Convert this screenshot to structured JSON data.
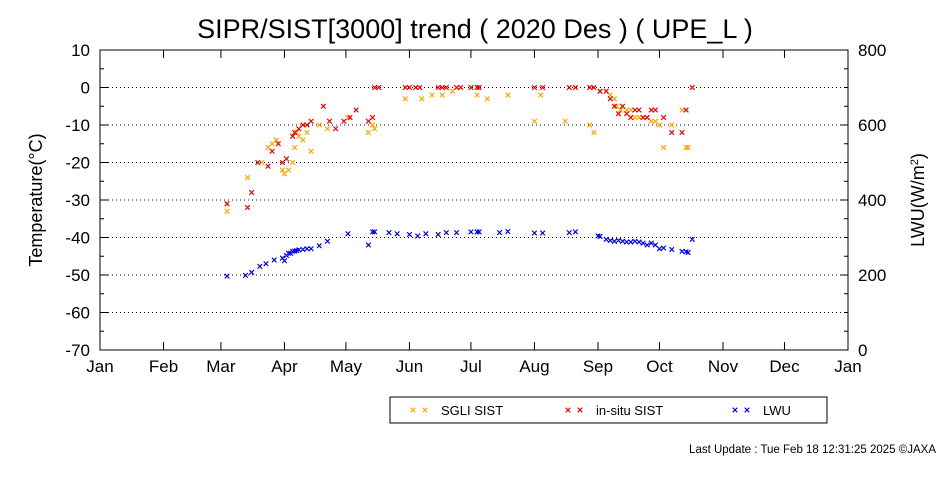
{
  "chart_data": {
    "type": "scatter",
    "title": "SIPR/SIST[3000] trend ( 2020 Des ) ( UPE_L )",
    "xlabel": "",
    "ylabel": "Temperature(°C)",
    "y2label_prefix": "LWU(W/m",
    "y2label_sup": "2",
    "y2label_suffix": ")",
    "x_unit": "day of year",
    "xlim": [
      1,
      366
    ],
    "ylim": [
      -70,
      10
    ],
    "y2lim": [
      0,
      800
    ],
    "x_ticks": [
      {
        "label": "Jan",
        "day": 1
      },
      {
        "label": "Feb",
        "day": 32
      },
      {
        "label": "Mar",
        "day": 60
      },
      {
        "label": "Apr",
        "day": 91
      },
      {
        "label": "May",
        "day": 121
      },
      {
        "label": "Jun",
        "day": 152
      },
      {
        "label": "Jul",
        "day": 182
      },
      {
        "label": "Aug",
        "day": 213
      },
      {
        "label": "Sep",
        "day": 244
      },
      {
        "label": "Oct",
        "day": 274
      },
      {
        "label": "Nov",
        "day": 305
      },
      {
        "label": "Dec",
        "day": 335
      },
      {
        "label": "Jan",
        "day": 366
      }
    ],
    "y_ticks": [
      10,
      0,
      -10,
      -20,
      -30,
      -40,
      -50,
      -60,
      -70
    ],
    "y2_ticks": [
      800,
      600,
      400,
      200,
      0
    ],
    "grid": "dotted horizontal at each y tick",
    "legend_position": "bottom-right",
    "series": [
      {
        "name": "SGLI SIST",
        "color": "#ffa500",
        "axis": "left",
        "x": [
          63,
          63,
          73,
          80,
          83,
          85,
          87,
          90,
          91,
          93,
          95,
          96,
          97,
          98,
          100,
          102,
          104,
          108,
          112,
          122,
          132,
          134,
          135,
          150,
          158,
          163,
          168,
          173,
          185,
          190,
          200,
          213,
          216,
          228,
          240,
          242,
          245,
          248,
          250,
          252,
          253,
          255,
          258,
          260,
          262,
          264,
          266,
          268,
          270,
          272,
          274,
          276,
          280,
          285,
          287,
          288
        ],
        "y": [
          -33,
          -31,
          -24,
          -20,
          -16,
          -15,
          -14,
          -22,
          -23,
          -22,
          -20,
          -16,
          -12,
          -13,
          -14,
          -12,
          -17,
          -10,
          -11,
          -8,
          -12,
          -10,
          -11,
          -3,
          -3,
          -2,
          -2,
          -1,
          -2,
          -3,
          -2,
          -9,
          -2,
          -9,
          -10,
          -12,
          -1,
          -1,
          -2,
          -3,
          -5,
          -6,
          -6,
          -6,
          -8,
          -8,
          -8,
          -8,
          -9,
          -9,
          -10,
          -16,
          -10,
          -6,
          -16,
          -16
        ]
      },
      {
        "name": "in-situ SIST",
        "color": "#e00000",
        "axis": "left",
        "x": [
          63,
          73,
          75,
          78,
          83,
          85,
          88,
          90,
          92,
          95,
          96,
          98,
          100,
          102,
          104,
          110,
          113,
          116,
          120,
          123,
          126,
          132,
          134,
          135,
          137,
          150,
          152,
          155,
          157,
          166,
          168,
          170,
          175,
          177,
          182,
          185,
          186,
          213,
          217,
          230,
          233,
          240,
          242,
          245,
          248,
          250,
          252,
          254,
          256,
          258,
          260,
          262,
          264,
          266,
          268,
          270,
          272,
          276,
          280,
          285,
          287,
          290
        ],
        "y": [
          -31,
          -32,
          -28,
          -20,
          -21,
          -17,
          -15,
          -20,
          -19,
          -13,
          -12,
          -11,
          -10,
          -10,
          -9,
          -5,
          -9,
          -11,
          -9,
          -8,
          -6,
          -9,
          -8,
          0,
          0,
          0,
          0,
          0,
          0,
          0,
          0,
          0,
          0,
          0,
          0,
          0,
          0,
          0,
          0,
          0,
          0,
          0,
          0,
          -1,
          -1,
          -3,
          -5,
          -7,
          -5,
          -7,
          -8,
          -6,
          -6,
          -8,
          -8,
          -6,
          -6,
          -8,
          -12,
          -12,
          -6,
          0
        ]
      },
      {
        "name": "LWU",
        "color": "#0000dd",
        "axis": "right",
        "x": [
          63,
          72,
          75,
          79,
          82,
          86,
          90,
          91,
          92,
          93,
          94,
          95,
          96,
          97,
          98,
          100,
          102,
          104,
          108,
          112,
          122,
          132,
          134,
          135,
          142,
          146,
          152,
          156,
          160,
          166,
          170,
          175,
          182,
          185,
          186,
          196,
          200,
          213,
          217,
          230,
          233,
          244,
          245,
          248,
          250,
          252,
          254,
          256,
          258,
          260,
          262,
          264,
          266,
          268,
          270,
          272,
          274,
          276,
          280,
          285,
          287,
          288,
          290
        ],
        "y": [
          197,
          199,
          207,
          223,
          230,
          240,
          245,
          238,
          252,
          258,
          258,
          263,
          264,
          265,
          267,
          268,
          270,
          270,
          278,
          290,
          310,
          280,
          315,
          315,
          313,
          310,
          308,
          304,
          310,
          308,
          313,
          313,
          315,
          315,
          315,
          313,
          316,
          312,
          312,
          313,
          315,
          304,
          303,
          295,
          292,
          290,
          292,
          290,
          288,
          288,
          290,
          288,
          285,
          280,
          285,
          280,
          270,
          272,
          268,
          263,
          262,
          260,
          295
        ]
      }
    ]
  },
  "legend": [
    {
      "label": "SGLI SIST",
      "color": "#ffa500"
    },
    {
      "label": "in-situ SIST",
      "color": "#e00000"
    },
    {
      "label": "LWU",
      "color": "#0000dd"
    }
  ],
  "footer": "Last Update : Tue Feb 18 12:31:25 2025  ©JAXA"
}
